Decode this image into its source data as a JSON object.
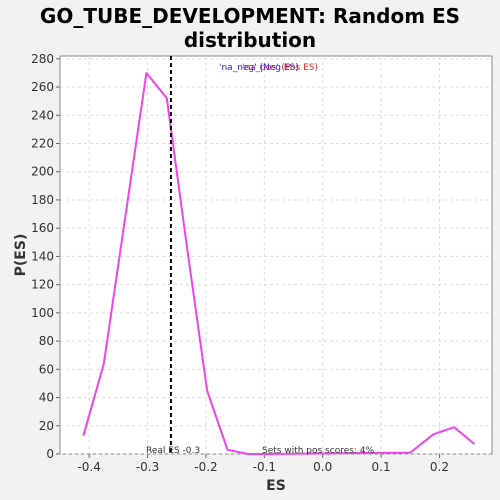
{
  "chart_data": {
    "type": "line",
    "title_lines": [
      "GO_TUBE_DEVELOPMENT: Random ES",
      "distribution"
    ],
    "xlabel": "ES",
    "ylabel": "P(ES)",
    "xlim": [
      -0.45,
      0.29
    ],
    "ylim": [
      0,
      282
    ],
    "x_ticks": [
      -0.4,
      -0.3,
      -0.2,
      -0.1,
      0.0,
      0.1,
      0.2
    ],
    "x_tick_labels": [
      "-0.4",
      "-0.3",
      "-0.2",
      "-0.1",
      "0.0",
      "0.1",
      "0.2"
    ],
    "y_ticks": [
      0,
      20,
      40,
      60,
      80,
      100,
      120,
      140,
      160,
      180,
      200,
      220,
      240,
      260,
      280
    ],
    "y_tick_labels": [
      "0",
      "20",
      "40",
      "60",
      "80",
      "100",
      "120",
      "140",
      "160",
      "180",
      "200",
      "220",
      "240",
      "260",
      "280"
    ],
    "grid": true,
    "series": [
      {
        "color": "#ee44ee",
        "x": [
          -0.41,
          -0.375,
          -0.302,
          -0.267,
          -0.233,
          -0.198,
          -0.163,
          -0.128,
          -0.094,
          0.15,
          0.19,
          0.225,
          0.26
        ],
        "y": [
          13,
          64,
          270,
          252,
          148,
          45,
          3,
          0,
          0,
          1,
          14,
          19,
          7
        ]
      }
    ],
    "vline": {
      "x": -0.26,
      "style": "dashed",
      "color": "#000000"
    },
    "legend": {
      "placement": "top-center",
      "text_neg": "'na_neg' (Neg ES)",
      "text_pos": "'na_pos' (Pos ES)",
      "color_neg": "#2222ee",
      "color_pos": "#ee2222"
    },
    "annotations": {
      "real_es": "Real ES -0.3",
      "pos_scores": "Sets with pos scores: 4%"
    }
  }
}
